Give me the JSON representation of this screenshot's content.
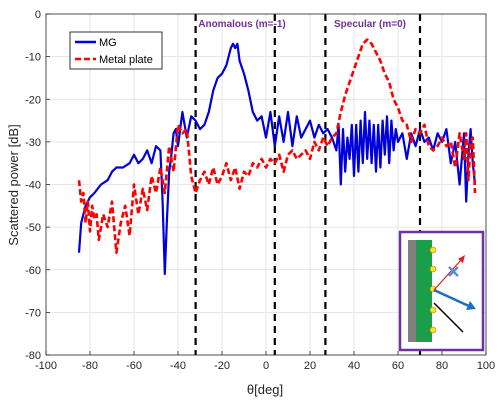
{
  "chart_data": {
    "type": "line",
    "xlabel": "θ[deg]",
    "ylabel": "Scattered power [dB]",
    "xlim": [
      -100,
      100
    ],
    "ylim": [
      -80,
      0
    ],
    "x_ticks": [
      -100,
      -80,
      -60,
      -40,
      -20,
      0,
      20,
      40,
      60,
      80,
      100
    ],
    "y_ticks": [
      0,
      -10,
      -20,
      -30,
      -40,
      -50,
      -60,
      -70,
      -80
    ],
    "grid": true,
    "legend_position": "top-left",
    "regions": [
      {
        "label": "Anomalous (m=-1)",
        "x_start": -32,
        "x_end": 4
      },
      {
        "label": "Specular (m=0)",
        "x_start": 27,
        "x_end": 70
      }
    ],
    "series": [
      {
        "name": "MG",
        "color": "#0000dd",
        "style": "solid",
        "x": [
          -85,
          -84,
          -83,
          -82,
          -80,
          -78,
          -75,
          -72,
          -70,
          -68,
          -65,
          -62,
          -60,
          -58,
          -56,
          -54,
          -52,
          -50,
          -48,
          -47,
          -46,
          -45,
          -44,
          -43,
          -42,
          -41,
          -40,
          -38,
          -36,
          -34,
          -32,
          -30,
          -28,
          -26,
          -24,
          -22,
          -20,
          -18,
          -16,
          -15,
          -14,
          -13,
          -12,
          -10,
          -8,
          -6,
          -4,
          -2,
          0,
          2,
          4,
          6,
          8,
          10,
          12,
          14,
          16,
          18,
          20,
          22,
          24,
          26,
          28,
          30,
          32,
          33,
          34,
          35,
          36,
          37,
          38,
          39,
          40,
          41,
          42,
          43,
          44,
          45,
          46,
          47,
          48,
          49,
          50,
          51,
          52,
          53,
          54,
          55,
          56,
          57,
          58,
          59,
          60,
          62,
          64,
          66,
          68,
          70,
          72,
          74,
          76,
          78,
          80,
          82,
          84,
          86,
          88,
          90,
          91,
          92,
          93,
          94,
          95
        ],
        "y": [
          -56,
          -49,
          -47,
          -45,
          -43,
          -42,
          -40,
          -39,
          -37,
          -36,
          -36,
          -35,
          -33,
          -35,
          -34,
          -32,
          -35,
          -31,
          -32,
          -44,
          -61,
          -48,
          -37,
          -33,
          -28,
          -27,
          -31,
          -23,
          -29,
          -24,
          -25,
          -27,
          -26,
          -23,
          -18,
          -15,
          -14,
          -12,
          -8,
          -7,
          -8,
          -7,
          -11,
          -14,
          -18,
          -23,
          -25,
          -24,
          -29,
          -23,
          -31,
          -24,
          -30,
          -23,
          -31,
          -24,
          -29,
          -27,
          -25,
          -29,
          -26,
          -28,
          -27,
          -29,
          -32,
          -26,
          -40,
          -27,
          -37,
          -29,
          -34,
          -26,
          -38,
          -26,
          -37,
          -25,
          -35,
          -23,
          -34,
          -25,
          -35,
          -26,
          -37,
          -26,
          -36,
          -25,
          -33,
          -24,
          -35,
          -25,
          -32,
          -27,
          -30,
          -28,
          -34,
          -28,
          -31,
          -27,
          -30,
          -29,
          -32,
          -28,
          -30,
          -27,
          -35,
          -30,
          -40,
          -28,
          -44,
          -33,
          -27,
          -35,
          -40
        ]
      },
      {
        "name": "Metal plate",
        "color": "#ff0000",
        "style": "dashed",
        "x": [
          -85,
          -84,
          -83,
          -82,
          -81,
          -80,
          -79,
          -78,
          -77,
          -76,
          -74,
          -72,
          -70,
          -68,
          -66,
          -64,
          -62,
          -60,
          -58,
          -56,
          -54,
          -52,
          -50,
          -48,
          -46,
          -44,
          -42,
          -40,
          -38,
          -36,
          -34,
          -32,
          -30,
          -28,
          -26,
          -24,
          -22,
          -20,
          -18,
          -16,
          -14,
          -12,
          -10,
          -8,
          -6,
          -4,
          -2,
          0,
          2,
          4,
          6,
          8,
          10,
          12,
          14,
          16,
          18,
          20,
          22,
          24,
          26,
          28,
          30,
          32,
          34,
          36,
          38,
          40,
          42,
          44,
          46,
          48,
          50,
          52,
          54,
          56,
          58,
          60,
          62,
          64,
          66,
          68,
          70,
          72,
          74,
          76,
          78,
          80,
          82,
          84,
          86,
          88,
          90,
          91,
          92,
          93,
          94,
          95
        ],
        "y": [
          -39,
          -44,
          -42,
          -49,
          -44,
          -51,
          -45,
          -48,
          -47,
          -53,
          -47,
          -50,
          -44,
          -56,
          -49,
          -45,
          -52,
          -40,
          -47,
          -41,
          -46,
          -38,
          -42,
          -36,
          -42,
          -31,
          -37,
          -26,
          -28,
          -27,
          -38,
          -42,
          -39,
          -37,
          -40,
          -36,
          -40,
          -38,
          -35,
          -39,
          -36,
          -41,
          -37,
          -38,
          -35,
          -36,
          -34,
          -36,
          -34,
          -35,
          -33,
          -37,
          -33,
          -32,
          -34,
          -33,
          -32,
          -34,
          -30,
          -32,
          -29,
          -31,
          -29,
          -28,
          -23,
          -19,
          -16,
          -13,
          -10,
          -7,
          -6,
          -7,
          -9,
          -11,
          -14,
          -16,
          -20,
          -22,
          -25,
          -26,
          -30,
          -27,
          -28,
          -26,
          -31,
          -32,
          -31,
          -29,
          -31,
          -30,
          -36,
          -28,
          -34,
          -28,
          -39,
          -30,
          -29,
          -42
        ]
      }
    ]
  }
}
